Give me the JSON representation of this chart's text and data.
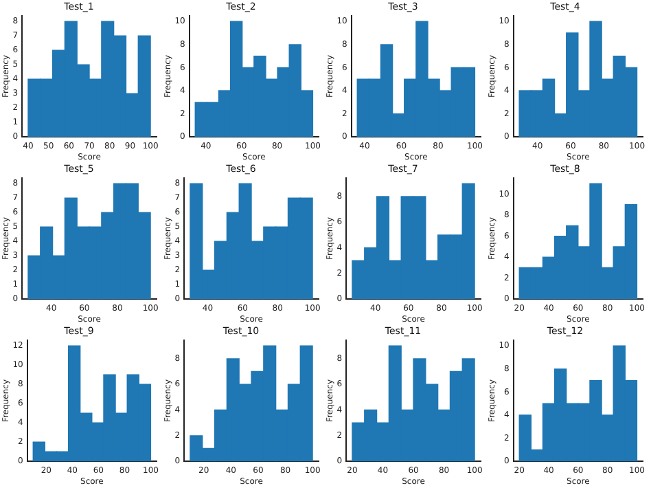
{
  "chart_data": [
    {
      "type": "histogram",
      "title": "Test_1",
      "xlabel": "Score",
      "ylabel": "Frequency",
      "color": "#1f77b4",
      "bins": [
        40,
        46,
        52,
        58,
        64,
        70,
        76,
        82,
        88,
        94,
        100
      ],
      "values": [
        4,
        4,
        6,
        8,
        5,
        4,
        8,
        7,
        3,
        7
      ],
      "xlim": [
        37,
        103
      ],
      "xticks": [
        40,
        50,
        60,
        70,
        80,
        90,
        100
      ],
      "ylim": [
        0,
        8.4
      ],
      "yticks": [
        0,
        1,
        2,
        3,
        4,
        5,
        6,
        7,
        8
      ]
    },
    {
      "type": "histogram",
      "title": "Test_2",
      "xlabel": "Score",
      "ylabel": "Frequency",
      "color": "#1f77b4",
      "bins": [
        34,
        40.6,
        47.2,
        53.8,
        60.4,
        67,
        73.6,
        80.2,
        86.8,
        93.4,
        100
      ],
      "values": [
        3,
        3,
        4,
        10,
        6,
        7,
        5,
        6,
        8,
        4
      ],
      "xlim": [
        30.7,
        103.3
      ],
      "xticks": [
        40,
        60,
        80,
        100
      ],
      "ylim": [
        0,
        10.5
      ],
      "yticks": [
        0,
        2,
        4,
        6,
        8,
        10
      ]
    },
    {
      "type": "histogram",
      "title": "Test_3",
      "xlabel": "Score",
      "ylabel": "Frequency",
      "color": "#1f77b4",
      "bins": [
        36,
        42.4,
        48.8,
        55.2,
        61.6,
        68,
        74.4,
        80.8,
        87.2,
        93.6,
        100
      ],
      "values": [
        5,
        5,
        8,
        2,
        5,
        10,
        5,
        4,
        6,
        6
      ],
      "xlim": [
        32.8,
        103.2
      ],
      "xticks": [
        40,
        60,
        80,
        100
      ],
      "ylim": [
        0,
        10.5
      ],
      "yticks": [
        0,
        2,
        4,
        6,
        8,
        10
      ]
    },
    {
      "type": "histogram",
      "title": "Test_4",
      "xlabel": "Score",
      "ylabel": "Frequency",
      "color": "#1f77b4",
      "bins": [
        29,
        36.1,
        43.2,
        50.3,
        57.4,
        64.5,
        71.6,
        78.7,
        85.8,
        92.9,
        100
      ],
      "values": [
        4,
        4,
        5,
        2,
        9,
        4,
        10,
        5,
        7,
        6
      ],
      "xlim": [
        25.5,
        103.5
      ],
      "xticks": [
        40,
        60,
        80,
        100
      ],
      "ylim": [
        0,
        10.5
      ],
      "yticks": [
        0,
        2,
        4,
        6,
        8,
        10
      ]
    },
    {
      "type": "histogram",
      "title": "Test_5",
      "xlabel": "Score",
      "ylabel": "Frequency",
      "color": "#1f77b4",
      "bins": [
        26,
        33.4,
        40.8,
        48.2,
        55.6,
        63,
        70.4,
        77.8,
        85.2,
        92.6,
        100
      ],
      "values": [
        3,
        5,
        3,
        7,
        5,
        5,
        6,
        8,
        8,
        6
      ],
      "xlim": [
        22.3,
        103.7
      ],
      "xticks": [
        40,
        60,
        80,
        100
      ],
      "ylim": [
        0,
        8.4
      ],
      "yticks": [
        0,
        1,
        2,
        3,
        4,
        5,
        6,
        7,
        8
      ]
    },
    {
      "type": "histogram",
      "title": "Test_6",
      "xlabel": "Score",
      "ylabel": "Frequency",
      "color": "#1f77b4",
      "bins": [
        30,
        37,
        44,
        51,
        58,
        65,
        72,
        79,
        86,
        93,
        100
      ],
      "values": [
        8,
        2,
        4,
        6,
        8,
        4,
        5,
        5,
        7,
        7
      ],
      "xlim": [
        26.5,
        103.5
      ],
      "xticks": [
        40,
        60,
        80,
        100
      ],
      "ylim": [
        0,
        8.4
      ],
      "yticks": [
        0,
        1,
        2,
        3,
        4,
        5,
        6,
        7,
        8
      ]
    },
    {
      "type": "histogram",
      "title": "Test_7",
      "xlabel": "Score",
      "ylabel": "Frequency",
      "color": "#1f77b4",
      "bins": [
        26,
        33.4,
        40.8,
        48.2,
        55.6,
        63,
        70.4,
        77.8,
        85.2,
        92.6,
        100
      ],
      "values": [
        3,
        4,
        8,
        3,
        8,
        8,
        3,
        5,
        5,
        9
      ],
      "xlim": [
        22.3,
        103.7
      ],
      "xticks": [
        40,
        60,
        80,
        100
      ],
      "ylim": [
        0,
        9.45
      ],
      "yticks": [
        0,
        2,
        4,
        6,
        8
      ]
    },
    {
      "type": "histogram",
      "title": "Test_8",
      "xlabel": "Score",
      "ylabel": "Frequency",
      "color": "#1f77b4",
      "bins": [
        20,
        28,
        36,
        44,
        52,
        60,
        68,
        76,
        84,
        92,
        100
      ],
      "values": [
        3,
        3,
        4,
        6,
        7,
        5,
        11,
        3,
        5,
        9
      ],
      "xlim": [
        16,
        104
      ],
      "xticks": [
        20,
        40,
        60,
        80,
        100
      ],
      "ylim": [
        0,
        11.55
      ],
      "yticks": [
        0,
        2,
        4,
        6,
        8,
        10
      ]
    },
    {
      "type": "histogram",
      "title": "Test_9",
      "xlabel": "Score",
      "ylabel": "Frequency",
      "color": "#1f77b4",
      "bins": [
        10,
        19,
        28,
        37,
        46,
        55,
        64,
        73,
        82,
        91,
        100
      ],
      "values": [
        2,
        1,
        1,
        12,
        5,
        4,
        9,
        5,
        9,
        8
      ],
      "xlim": [
        5.5,
        104.5
      ],
      "xticks": [
        20,
        40,
        60,
        80,
        100
      ],
      "ylim": [
        0,
        12.6
      ],
      "yticks": [
        0,
        2,
        4,
        6,
        8,
        10,
        12
      ]
    },
    {
      "type": "histogram",
      "title": "Test_10",
      "xlabel": "Score",
      "ylabel": "Frequency",
      "color": "#1f77b4",
      "bins": [
        10,
        19,
        28,
        37,
        46,
        55,
        64,
        73,
        82,
        91,
        100
      ],
      "values": [
        2,
        1,
        4,
        8,
        6,
        7,
        9,
        4,
        6,
        9
      ],
      "xlim": [
        5.5,
        104.5
      ],
      "xticks": [
        20,
        40,
        60,
        80,
        100
      ],
      "ylim": [
        0,
        9.45
      ],
      "yticks": [
        0,
        2,
        4,
        6,
        8
      ]
    },
    {
      "type": "histogram",
      "title": "Test_11",
      "xlabel": "Score",
      "ylabel": "Frequency",
      "color": "#1f77b4",
      "bins": [
        20,
        28,
        36,
        44,
        52,
        60,
        68,
        76,
        84,
        92,
        100
      ],
      "values": [
        3,
        4,
        3,
        9,
        4,
        8,
        6,
        4,
        7,
        8
      ],
      "xlim": [
        16,
        104
      ],
      "xticks": [
        20,
        40,
        60,
        80,
        100
      ],
      "ylim": [
        0,
        9.45
      ],
      "yticks": [
        0,
        2,
        4,
        6,
        8
      ]
    },
    {
      "type": "histogram",
      "title": "Test_12",
      "xlabel": "Score",
      "ylabel": "Frequency",
      "color": "#1f77b4",
      "bins": [
        20,
        28,
        36,
        44,
        52,
        60,
        68,
        76,
        84,
        92,
        100
      ],
      "values": [
        4,
        1,
        5,
        8,
        5,
        5,
        7,
        4,
        10,
        7
      ],
      "xlim": [
        16,
        104
      ],
      "xticks": [
        20,
        40,
        60,
        80,
        100
      ],
      "ylim": [
        0,
        10.5
      ],
      "yticks": [
        0,
        2,
        4,
        6,
        8,
        10
      ]
    }
  ]
}
